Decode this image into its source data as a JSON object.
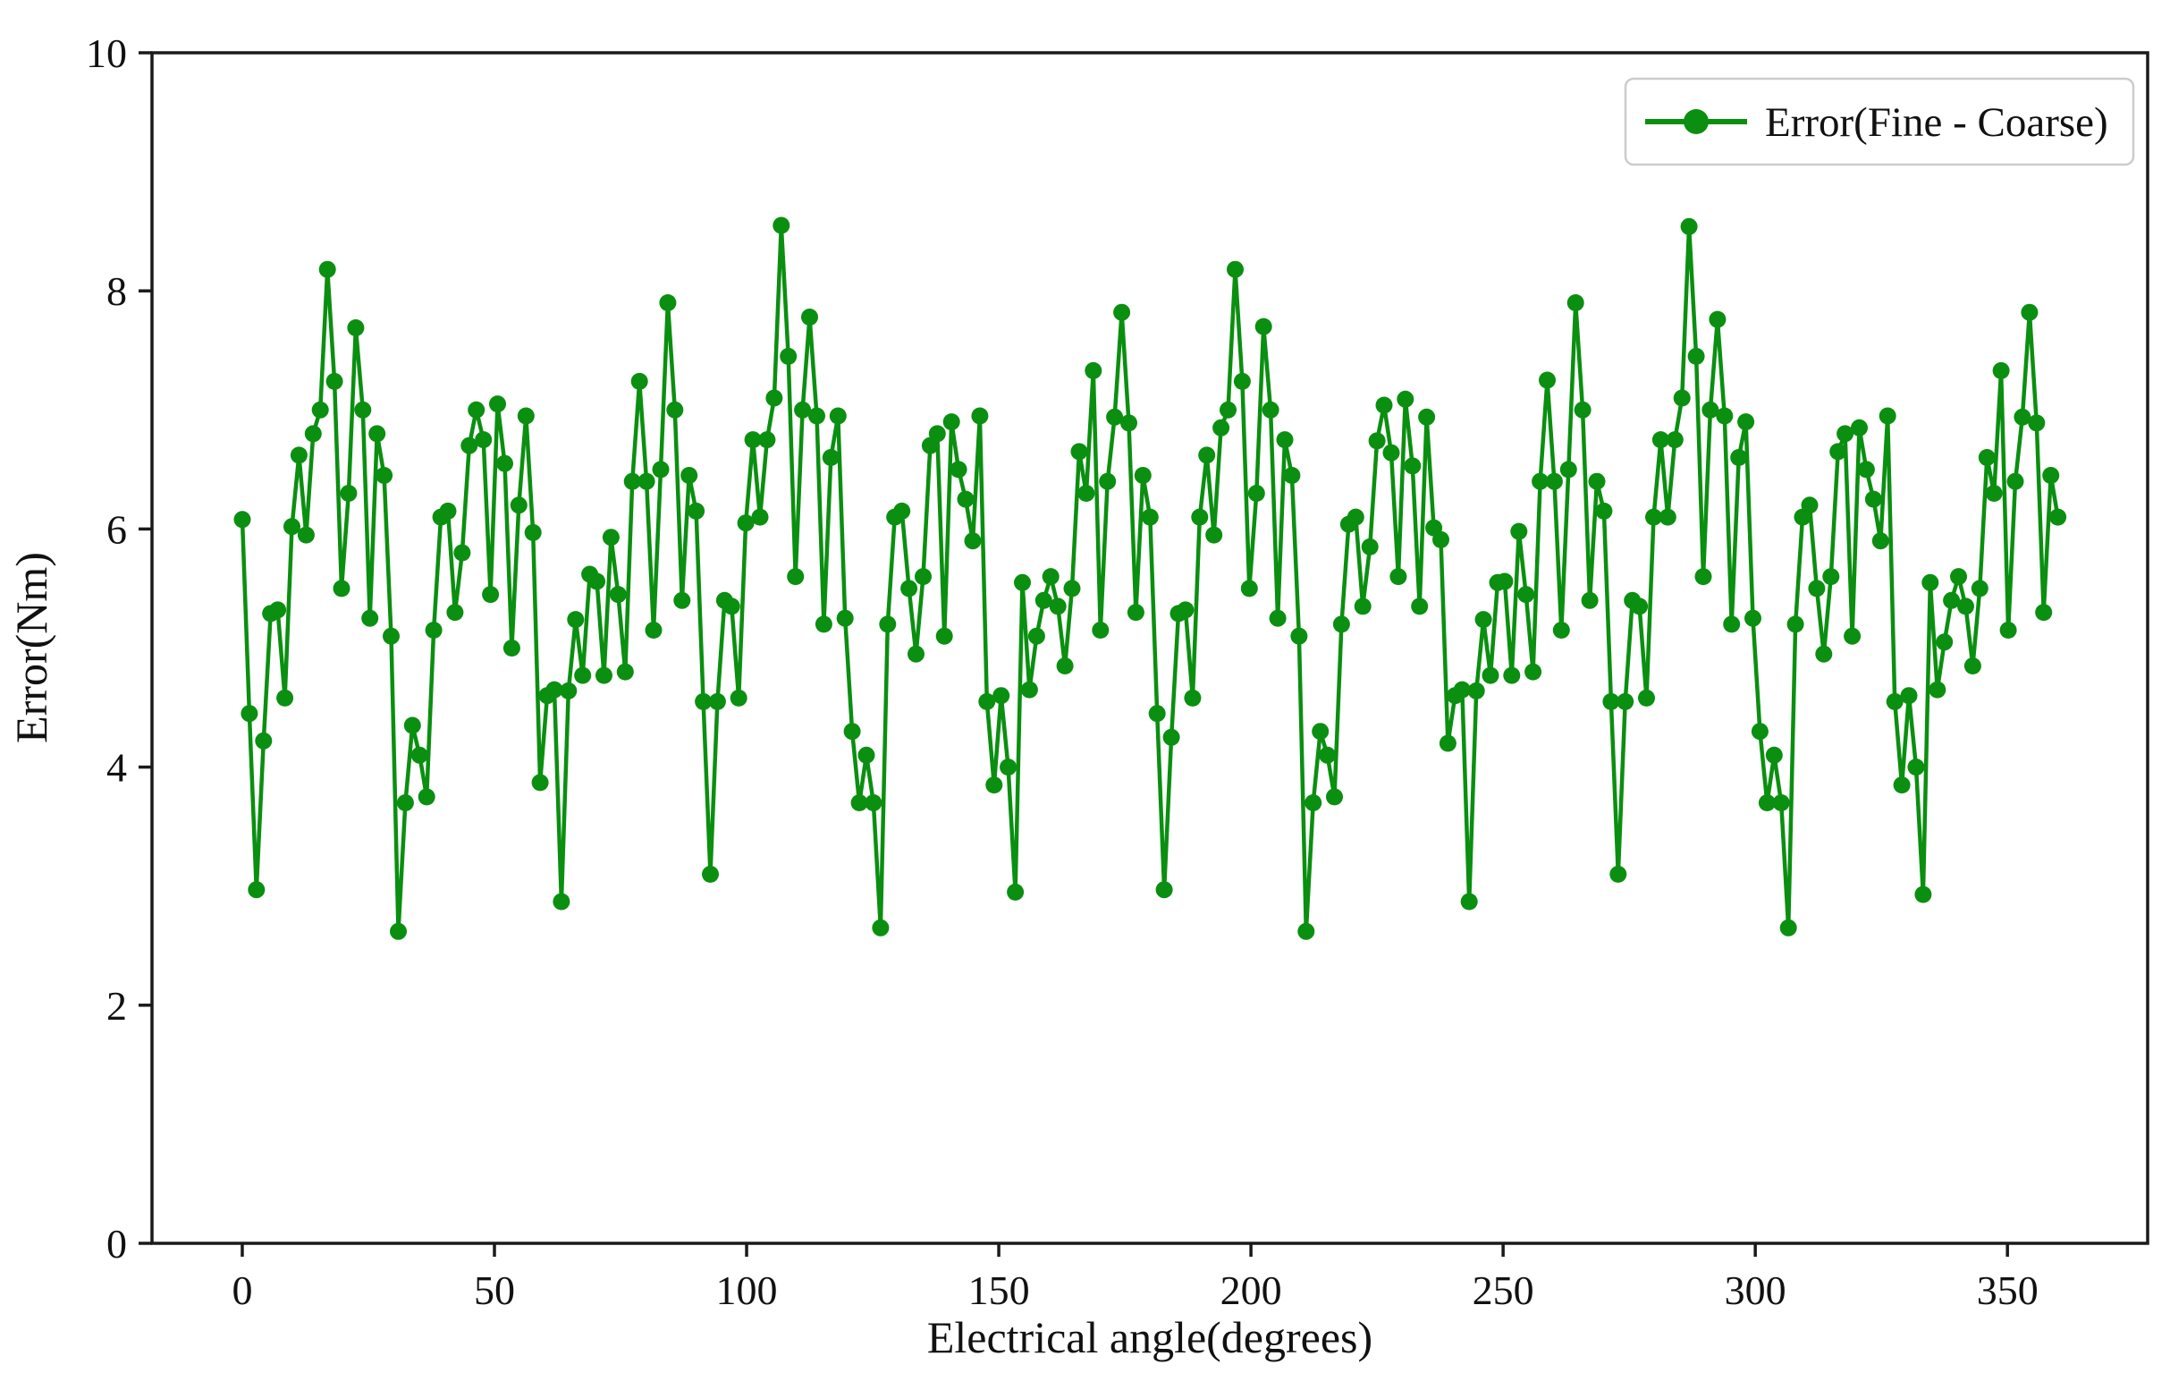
{
  "figure": {
    "background": "#ffffff",
    "line_color": "#0a8f10",
    "spine_color": "#1a1a1a",
    "text_color": "#111111",
    "legend_border_color": "#cccccc"
  },
  "chart_data": {
    "type": "line",
    "title": "",
    "xlabel": "Electrical angle(degrees)",
    "ylabel": "Error(Nm)",
    "legend_label": "Error(Fine - Coarse)",
    "legend_position": "upper right",
    "grid": false,
    "marker": "circle",
    "xlim": [
      -17.9,
      377.8
    ],
    "ylim": [
      0,
      10
    ],
    "x_ticks": [
      0,
      50,
      100,
      150,
      200,
      250,
      300,
      350
    ],
    "y_ticks": [
      0,
      2,
      4,
      6,
      8,
      10
    ],
    "x_start": 0,
    "x_step": 1.40625,
    "series": [
      {
        "name": "Error(Fine - Coarse)",
        "color": "#0a8f10",
        "values": [
          6.08,
          4.45,
          2.97,
          4.22,
          5.29,
          5.32,
          4.58,
          6.02,
          6.62,
          5.95,
          6.8,
          7.0,
          8.18,
          7.24,
          5.5,
          6.3,
          7.69,
          7.0,
          5.25,
          6.8,
          6.45,
          5.1,
          2.62,
          3.7,
          4.35,
          4.1,
          3.75,
          5.15,
          6.1,
          6.15,
          5.3,
          5.8,
          6.7,
          7.0,
          6.75,
          5.45,
          7.05,
          6.55,
          5.0,
          6.2,
          6.95,
          5.97,
          3.87,
          4.6,
          4.65,
          2.87,
          4.64,
          5.24,
          4.77,
          5.62,
          5.56,
          4.77,
          5.93,
          5.45,
          4.8,
          6.4,
          7.24,
          6.4,
          5.15,
          6.5,
          7.9,
          7.0,
          5.4,
          6.45,
          6.15,
          4.55,
          3.1,
          4.55,
          5.4,
          5.35,
          4.58,
          6.05,
          6.75,
          6.1,
          6.75,
          7.1,
          8.55,
          7.45,
          5.6,
          7.0,
          7.78,
          6.95,
          5.2,
          6.6,
          6.95,
          5.25,
          4.3,
          3.7,
          4.1,
          3.7,
          2.65,
          5.2,
          6.1,
          6.15,
          5.5,
          4.95,
          5.6,
          6.7,
          6.8,
          5.1,
          6.9,
          6.5,
          6.25,
          5.9,
          6.95,
          4.55,
          3.85,
          4.6,
          4.0,
          2.95,
          5.55,
          4.65,
          5.1,
          5.4,
          5.6,
          5.35,
          4.85,
          5.5,
          6.65,
          6.3,
          7.33,
          5.15,
          6.4,
          6.94,
          7.82,
          6.89,
          5.3,
          6.45,
          6.1,
          4.45,
          2.97,
          4.25,
          5.29,
          5.32,
          4.58,
          6.1,
          6.62,
          5.95,
          6.85,
          7.0,
          8.18,
          7.24,
          5.5,
          6.3,
          7.7,
          7.0,
          5.25,
          6.75,
          6.45,
          5.1,
          2.62,
          3.7,
          4.3,
          4.1,
          3.75,
          5.2,
          6.04,
          6.1,
          5.35,
          5.85,
          6.74,
          7.04,
          6.64,
          5.6,
          7.09,
          6.53,
          5.35,
          6.94,
          6.01,
          5.91,
          4.2,
          4.6,
          4.65,
          2.87,
          4.64,
          5.24,
          4.77,
          5.55,
          5.56,
          4.77,
          5.98,
          5.45,
          4.8,
          6.4,
          7.25,
          6.4,
          5.15,
          6.5,
          7.9,
          7.0,
          5.4,
          6.4,
          6.15,
          4.55,
          3.1,
          4.55,
          5.4,
          5.35,
          4.58,
          6.1,
          6.75,
          6.1,
          6.75,
          7.1,
          8.54,
          7.45,
          5.6,
          7.0,
          7.76,
          6.95,
          5.2,
          6.6,
          6.9,
          5.25,
          4.3,
          3.7,
          4.1,
          3.7,
          2.65,
          5.2,
          6.1,
          6.2,
          5.5,
          4.95,
          5.6,
          6.65,
          6.8,
          5.1,
          6.85,
          6.5,
          6.25,
          5.9,
          6.95,
          4.55,
          3.85,
          4.6,
          4.0,
          2.93,
          5.55,
          4.65,
          5.05,
          5.4,
          5.6,
          5.35,
          4.85,
          5.5,
          6.6,
          6.3,
          7.33,
          5.15,
          6.4,
          6.94,
          7.82,
          6.89,
          5.3,
          6.45,
          6.1
        ]
      }
    ]
  }
}
